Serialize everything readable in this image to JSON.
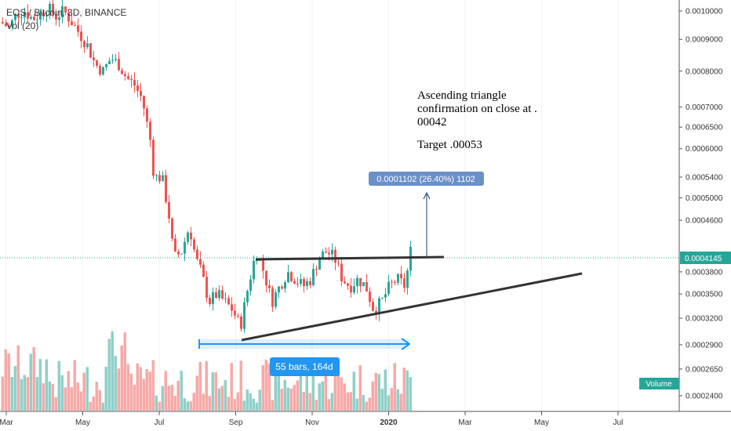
{
  "chart_data": {
    "type": "candlestick",
    "title": "EOS / Bitcoin, 3D, BINANCE",
    "indicator": "Vol (20)",
    "y_scale": "log",
    "y_ticks": [
      0.001,
      0.0009,
      0.0008,
      0.0007,
      0.00065,
      0.0006,
      0.00054,
      0.0005,
      0.00046,
      0.0004145,
      0.00038,
      0.00035,
      0.00032,
      0.00029,
      0.000265,
      0.00024
    ],
    "y_tick_labels": [
      "0.0010000",
      "0.0009000",
      "0.0008000",
      "0.0007000",
      "0.0006500",
      "0.0006000",
      "0.0005400",
      "0.0005000",
      "0.0004600",
      "0.0004145",
      "0.0003800",
      "0.0003500",
      "0.0003200",
      "0.0002900",
      "0.0002650",
      "0.0002400"
    ],
    "x_tick_labels": [
      "Mar",
      "May",
      "Jul",
      "Sep",
      "Nov",
      "2020",
      "Mar",
      "May",
      "Jul"
    ],
    "last_price": 0.0004145,
    "last_price_label": "0.0004145",
    "volume_label": "Volume",
    "annotations": {
      "note_lines": [
        "Ascending triangle",
        "confirmation on close at .",
        "00042",
        "",
        "Target .00053"
      ],
      "measure_badge": "0.0001102 (26.40%) 1102",
      "bars_badge": "55 bars, 164d"
    },
    "colors": {
      "up": "#26a69a",
      "down": "#ef5350",
      "up_volume": "#8fd0c8",
      "down_volume": "#f7a9a7",
      "price_line": "#26a69a",
      "measure": "#2196f3",
      "badge_bg": "#6a8fc9",
      "trendline": "#333333"
    }
  }
}
